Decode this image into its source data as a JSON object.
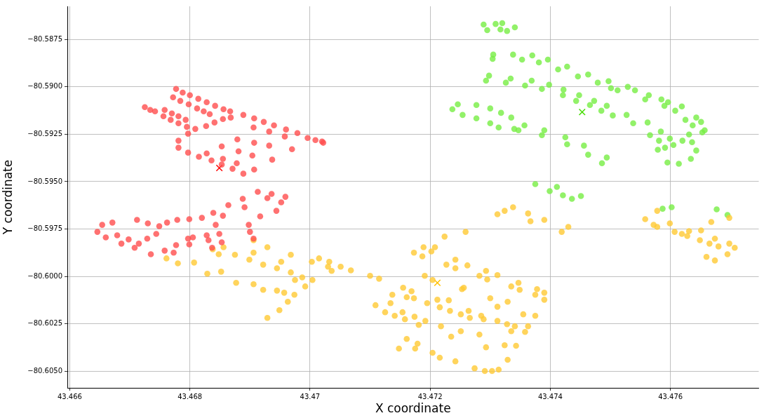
{
  "chart_data": {
    "type": "scatter",
    "xlabel": "X coordinate",
    "ylabel": "Y coordinate",
    "grid": true,
    "marker": "circle",
    "xlim": [
      43.46596,
      43.47747
    ],
    "ylim": [
      -80.60588,
      -80.58575
    ],
    "xticks": [
      43.466,
      43.468,
      43.47,
      43.472,
      43.474,
      43.476
    ],
    "yticks": [
      {
        "value": -80.5875,
        "label": "−80.5875"
      },
      {
        "value": -80.59,
        "label": "−80.5900"
      },
      {
        "value": -80.5925,
        "label": "−80.5925"
      },
      {
        "value": -80.595,
        "label": "−80.5950"
      },
      {
        "value": -80.5975,
        "label": "−80.5975"
      },
      {
        "value": -80.6,
        "label": "−80.6000"
      },
      {
        "value": -80.6025,
        "label": "−80.6025"
      },
      {
        "value": -80.605,
        "label": "−80.6050"
      }
    ],
    "series": [
      {
        "color": "#ff4d4d",
        "x": [
          43.46777,
          43.46788,
          43.468,
          43.46814,
          43.46828,
          43.46842,
          43.46856,
          43.46867,
          43.46772,
          43.46784,
          43.46798,
          43.46812,
          43.46823,
          43.46833,
          43.46725,
          43.46734,
          43.46742,
          43.46758,
          43.4677,
          43.46781,
          43.46793,
          43.46756,
          43.46768,
          43.46781,
          43.46795,
          43.46809,
          43.46827,
          43.46841,
          43.46855,
          43.46868,
          43.46889,
          43.46907,
          43.46923,
          43.4694,
          43.4696,
          43.46979,
          43.46996,
          43.47009,
          43.47022,
          43.46828,
          43.46853,
          43.46879,
          43.46906,
          43.46855,
          43.46881,
          43.46907,
          43.46932,
          43.46878,
          43.46904,
          43.46932,
          43.46958,
          43.46907,
          43.46937,
          43.4697,
          43.4702,
          43.46797,
          43.46781,
          43.46781,
          43.46797,
          43.46815,
          43.46836,
          43.46853,
          43.46871,
          43.46889,
          43.46839,
          43.46864,
          43.46888,
          43.46913,
          43.46936,
          43.46959,
          43.46855,
          43.46891,
          43.46929,
          43.46952,
          43.46944,
          43.46917,
          43.46898,
          43.469,
          43.46906,
          43.46646,
          43.46654,
          43.46671,
          43.4666,
          43.46686,
          43.46712,
          43.4673,
          43.46749,
          43.46679,
          43.46698,
          43.46715,
          43.46729,
          43.46744,
          43.46708,
          43.46735,
          43.46758,
          43.46777,
          43.46797,
          43.46773,
          43.46799,
          43.46762,
          43.46779,
          43.46799,
          43.4682,
          43.46805,
          43.46828,
          43.46843,
          43.46849,
          43.46853,
          43.46831,
          43.46837
        ],
        "values": [
          -80.59011,
          -80.5903,
          -80.59044,
          -80.59063,
          -80.59081,
          -80.591,
          -80.59118,
          -80.59129,
          -80.59055,
          -80.59074,
          -80.59092,
          -80.59114,
          -80.59129,
          -80.59144,
          -80.59107,
          -80.59122,
          -80.59129,
          -80.59122,
          -80.5914,
          -80.59155,
          -80.59174,
          -80.59155,
          -80.59174,
          -80.59192,
          -80.59211,
          -80.59222,
          -80.59207,
          -80.59188,
          -80.5917,
          -80.59162,
          -80.59148,
          -80.59166,
          -80.59185,
          -80.59203,
          -80.59225,
          -80.59244,
          -80.5927,
          -80.59281,
          -80.59295,
          -80.59351,
          -80.59314,
          -80.59277,
          -80.59214,
          -80.5938,
          -80.5934,
          -80.59295,
          -80.59236,
          -80.59403,
          -80.59362,
          -80.5931,
          -80.59262,
          -80.59436,
          -80.59384,
          -80.59329,
          -80.59288,
          -80.59247,
          -80.59284,
          -80.59321,
          -80.59347,
          -80.59369,
          -80.59388,
          -80.5941,
          -80.59432,
          -80.59458,
          -80.59665,
          -80.59624,
          -80.59591,
          -80.59554,
          -80.59565,
          -80.5958,
          -80.5968,
          -80.59635,
          -80.59587,
          -80.59609,
          -80.59654,
          -80.59683,
          -80.59728,
          -80.59765,
          -80.59801,
          -80.59765,
          -80.59728,
          -80.59716,
          -80.59794,
          -80.59827,
          -80.59702,
          -80.5972,
          -80.59735,
          -80.59783,
          -80.59805,
          -80.59827,
          -80.59801,
          -80.59776,
          -80.59849,
          -80.59883,
          -80.59864,
          -80.59835,
          -80.59801,
          -80.59875,
          -80.59831,
          -80.59716,
          -80.59702,
          -80.59698,
          -80.59691,
          -80.59794,
          -80.59783,
          -80.59728,
          -80.59776,
          -80.5982,
          -80.59809,
          -80.59849
        ]
      },
      {
        "color": "#ffc933",
        "x": [
          43.46761,
          43.4678,
          43.46829,
          43.46877,
          43.46922,
          43.46957,
          43.46807,
          43.46852,
          43.46906,
          43.46945,
          43.46838,
          43.46875,
          43.46922,
          43.46968,
          43.46987,
          43.46856,
          43.46906,
          43.46952,
          43.46848,
          43.46899,
          43.46945,
          43.46975,
          43.46906,
          43.46929,
          43.46968,
          43.47003,
          43.4703,
          43.47015,
          43.47032,
          43.47051,
          43.47068,
          43.471,
          43.46929,
          43.46949,
          43.46963,
          43.46974,
          43.46992,
          43.47004,
          43.47036,
          43.47115,
          43.47173,
          43.47224,
          43.47187,
          43.47208,
          43.47259,
          43.47312,
          43.47189,
          43.47338,
          43.47363,
          43.4739,
          43.4743,
          43.47324,
          43.47367,
          43.47419,
          43.47202,
          43.47242,
          43.47155,
          43.47191,
          43.47227,
          43.47169,
          43.47204,
          43.47242,
          43.47109,
          43.47137,
          43.47134,
          43.47161,
          43.47173,
          43.47195,
          43.47212,
          43.47253,
          43.47295,
          43.47231,
          43.47256,
          43.47282,
          43.47264,
          43.473,
          43.47335,
          43.47312,
          43.47329,
          43.47262,
          43.47293,
          43.47312,
          43.47347,
          43.47349,
          43.47378,
          43.47375,
          43.4739,
          43.4739,
          43.47216,
          43.47233,
          43.47251,
          43.47125,
          43.47141,
          43.47158,
          43.47154,
          43.47174,
          43.47192,
          43.47266,
          43.47289,
          43.47312,
          43.47285,
          43.47328,
          43.47335,
          43.47375,
          43.47363,
          43.47355,
          43.47341,
          43.47358,
          43.47343,
          43.47329,
          43.47314,
          43.47303,
          43.47291,
          43.47274,
          43.47242,
          43.47204,
          43.47179,
          43.47216,
          43.47175,
          43.47218,
          43.47251,
          43.47282,
          43.47324,
          43.47235,
          43.47293,
          43.47181,
          43.47161,
          43.47148,
          43.47558,
          43.47578,
          43.47572,
          43.47599,
          43.47631,
          43.47628,
          43.47578,
          43.47607,
          43.47619,
          43.47651,
          43.47668,
          43.47649,
          43.47674,
          43.47698,
          43.4766,
          43.47674,
          43.47695,
          43.47707,
          43.47665,
          43.47698,
          43.4768
        ],
        "values": [
          -80.59905,
          -80.59931,
          -80.59986,
          -80.60034,
          -80.60071,
          -80.60086,
          -80.59927,
          -80.59975,
          -80.60041,
          -80.60075,
          -80.59857,
          -80.59886,
          -80.59938,
          -80.59979,
          -80.60005,
          -80.59846,
          -80.59875,
          -80.59923,
          -80.59883,
          -80.59912,
          -80.59957,
          -80.60019,
          -80.59809,
          -80.59846,
          -80.59886,
          -80.59923,
          -80.59949,
          -80.59905,
          -80.59923,
          -80.59949,
          -80.59968,
          -80.59997,
          -80.60219,
          -80.60178,
          -80.60134,
          -80.60097,
          -80.60053,
          -80.60019,
          -80.59971,
          -80.60012,
          -80.59875,
          -80.5979,
          -80.59894,
          -80.59846,
          -80.59765,
          -80.59672,
          -80.59846,
          -80.59635,
          -80.59668,
          -80.59702,
          -80.59739,
          -80.59654,
          -80.59709,
          -80.59765,
          -80.59868,
          -80.59912,
          -80.6006,
          -80.59997,
          -80.59938,
          -80.60078,
          -80.60019,
          -80.59957,
          -80.60152,
          -80.60097,
          -80.60141,
          -80.6011,
          -80.60115,
          -80.60141,
          -80.60123,
          -80.60067,
          -80.60016,
          -80.60126,
          -80.6006,
          -80.59997,
          -80.60182,
          -80.60115,
          -80.60053,
          -80.6016,
          -80.60134,
          -80.59942,
          -80.59971,
          -80.59993,
          -80.60034,
          -80.60071,
          -80.60067,
          -80.60097,
          -80.60086,
          -80.60123,
          -80.60163,
          -80.60182,
          -80.602,
          -80.60189,
          -80.60208,
          -80.60226,
          -80.60189,
          -80.60213,
          -80.60235,
          -80.60219,
          -80.60226,
          -80.60235,
          -80.60208,
          -80.60252,
          -80.60289,
          -80.60208,
          -80.60263,
          -80.602,
          -80.60263,
          -80.60293,
          -80.60366,
          -80.6044,
          -80.60492,
          -80.60499,
          -80.60499,
          -80.60485,
          -80.60448,
          -80.60403,
          -80.60355,
          -80.60429,
          -80.60381,
          -80.60263,
          -80.60289,
          -80.60307,
          -80.60363,
          -80.60318,
          -80.60374,
          -80.60256,
          -80.6033,
          -80.60381,
          -80.59698,
          -80.59654,
          -80.59728,
          -80.5972,
          -80.59761,
          -80.59787,
          -80.59739,
          -80.59765,
          -80.59776,
          -80.59757,
          -80.59713,
          -80.59809,
          -80.59801,
          -80.59691,
          -80.59897,
          -80.59916,
          -80.59883,
          -80.59849,
          -80.59827,
          -80.59827,
          -80.59842
        ]
      },
      {
        "color": "#77ee44",
        "x": [
          43.47289,
          43.47309,
          43.4732,
          43.47341,
          43.47295,
          43.47317,
          43.47328,
          43.47305,
          43.47338,
          43.4737,
          43.47396,
          43.47428,
          43.47463,
          43.47497,
          43.47529,
          43.47564,
          43.47596,
          43.47619,
          43.47643,
          43.47651,
          43.47304,
          43.47353,
          43.47381,
          43.47413,
          43.47446,
          43.47479,
          43.47298,
          43.47334,
          43.47369,
          43.47398,
          43.47422,
          43.47448,
          43.47473,
          43.47293,
          43.47326,
          43.47358,
          43.47386,
          43.47421,
          43.47443,
          43.47466,
          43.47501,
          43.47541,
          43.47585,
          43.47512,
          43.47558,
          43.4759,
          43.47608,
          43.47625,
          43.47637,
          43.47494,
          43.47527,
          43.47562,
          43.47584,
          43.47599,
          43.47504,
          43.47538,
          43.47566,
          43.47581,
          43.47591,
          43.47579,
          43.47595,
          43.47614,
          43.47605,
          43.4762,
          43.47631,
          43.47657,
          43.47636,
          43.47653,
          43.47643,
          43.47634,
          43.47485,
          43.47237,
          43.47246,
          43.47254,
          43.47277,
          43.473,
          43.47314,
          43.47277,
          43.473,
          43.47318,
          43.47335,
          43.4734,
          43.47357,
          43.4739,
          43.47425,
          43.47456,
          43.47494,
          43.47347,
          43.47386,
          43.47428,
          43.47463,
          43.47486,
          43.47375,
          43.47399,
          43.47411,
          43.47421,
          43.47436,
          43.47451,
          43.47587,
          43.47602,
          43.47677,
          43.47695
        ],
        "values": [
          -80.58671,
          -80.58668,
          -80.58664,
          -80.58686,
          -80.58701,
          -80.58697,
          -80.58705,
          -80.5883,
          -80.5883,
          -80.58834,
          -80.58856,
          -80.58893,
          -80.58935,
          -80.5897,
          -80.59,
          -80.59044,
          -80.59081,
          -80.59103,
          -80.59162,
          -80.59185,
          -80.58852,
          -80.58856,
          -80.58871,
          -80.58908,
          -80.58945,
          -80.58978,
          -80.58941,
          -80.58956,
          -80.58967,
          -80.58989,
          -80.59015,
          -80.59044,
          -80.59074,
          -80.58967,
          -80.58978,
          -80.58993,
          -80.59011,
          -80.59044,
          -80.59074,
          -80.59096,
          -80.59007,
          -80.59018,
          -80.59066,
          -80.59018,
          -80.59066,
          -80.591,
          -80.59126,
          -80.59174,
          -80.59203,
          -80.591,
          -80.59148,
          -80.59188,
          -80.59236,
          -80.59273,
          -80.59151,
          -80.59192,
          -80.59255,
          -80.59284,
          -80.59321,
          -80.59332,
          -80.59399,
          -80.59406,
          -80.59307,
          -80.59284,
          -80.59251,
          -80.59229,
          -80.59292,
          -80.5924,
          -80.59336,
          -80.5938,
          -80.59126,
          -80.59118,
          -80.59092,
          -80.59148,
          -80.59166,
          -80.59192,
          -80.59214,
          -80.59096,
          -80.59114,
          -80.59137,
          -80.59162,
          -80.59222,
          -80.59203,
          -80.59229,
          -80.59266,
          -80.5931,
          -80.59373,
          -80.59229,
          -80.59255,
          -80.59303,
          -80.59358,
          -80.59403,
          -80.59513,
          -80.5955,
          -80.59528,
          -80.59572,
          -80.59591,
          -80.59576,
          -80.59643,
          -80.59635,
          -80.59646,
          -80.59676
        ]
      },
      {
        "color": "#ff0000",
        "marker": "cross",
        "x": [
          43.46849
        ],
        "values": [
          -80.59428
        ]
      },
      {
        "color": "#ffc000",
        "marker": "cross",
        "x": [
          43.47212
        ],
        "values": [
          -80.60034
        ]
      },
      {
        "color": "#44dd00",
        "marker": "cross",
        "x": [
          43.47453
        ],
        "values": [
          -80.59133
        ]
      }
    ]
  }
}
